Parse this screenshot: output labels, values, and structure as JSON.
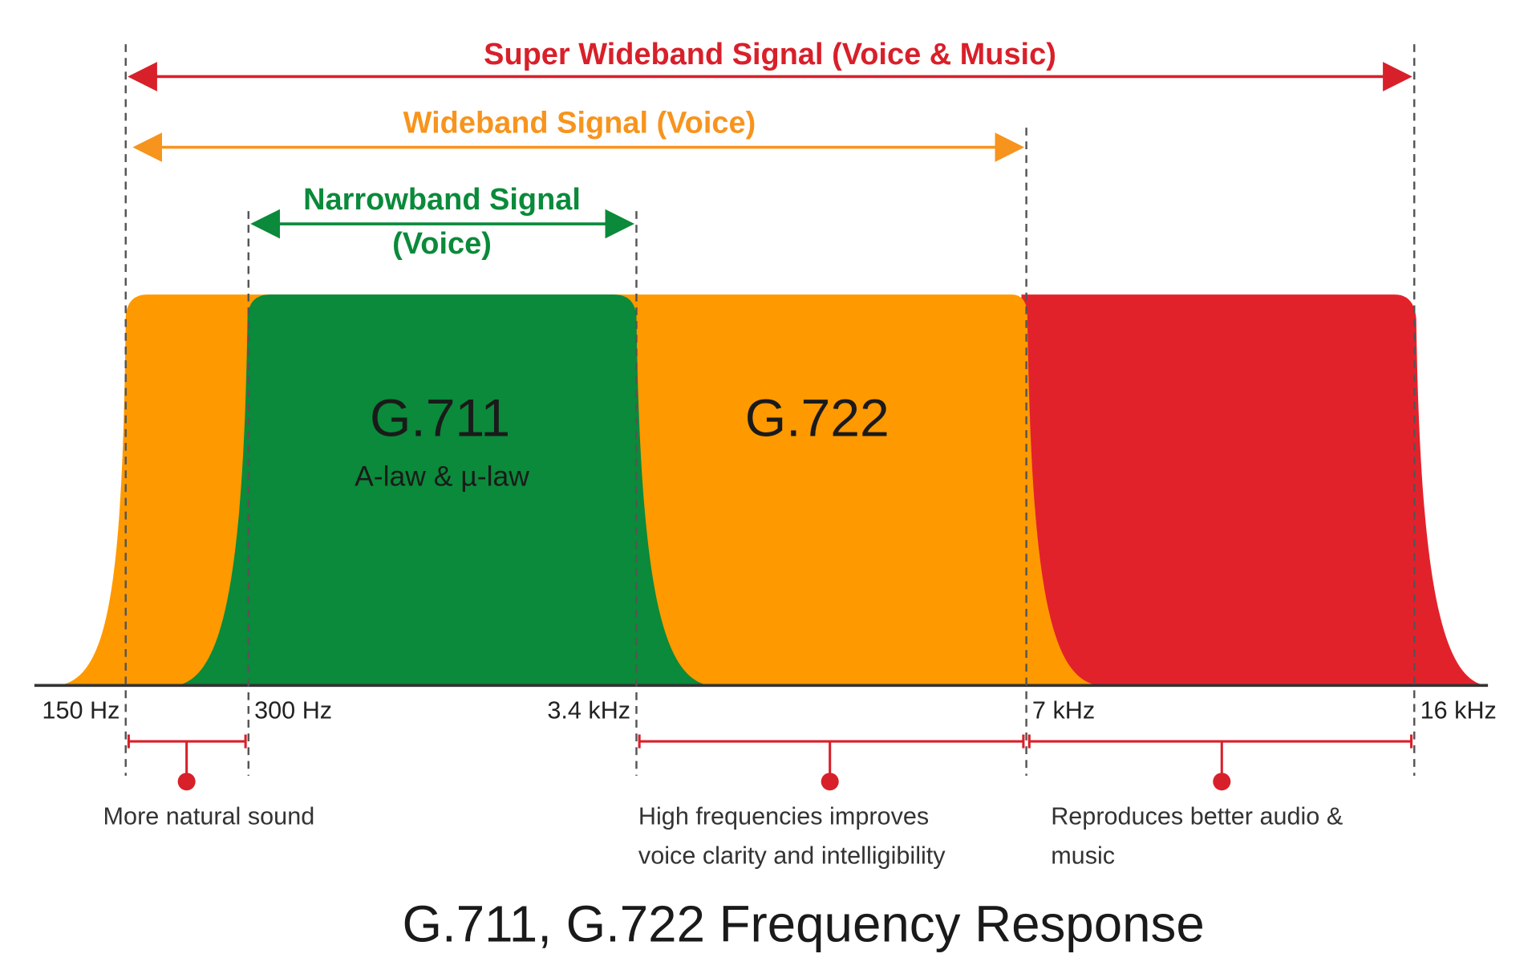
{
  "title": "G.711, G.722 Frequency Response",
  "bands": [
    {
      "label_lines": [
        "Super Wideband Signal (Voice & Music)"
      ]
    },
    {
      "label_lines": [
        "Wideband Signal (Voice)"
      ]
    },
    {
      "label_lines": [
        "Narrowband Signal",
        "(Voice)"
      ]
    }
  ],
  "codecs": [
    {
      "name": "G.711",
      "subtitle": "A-law & µ-law"
    },
    {
      "name": "G.722"
    }
  ],
  "frequency_labels": [
    "150 Hz",
    "300 Hz",
    "3.4 kHz",
    "7 kHz",
    "16 kHz"
  ],
  "notes": [
    {
      "lines": [
        "More natural sound"
      ]
    },
    {
      "lines": [
        "High frequencies improves",
        "voice clarity and intelligibility"
      ]
    },
    {
      "lines": [
        "Reproduces better audio &",
        "music"
      ]
    }
  ]
}
